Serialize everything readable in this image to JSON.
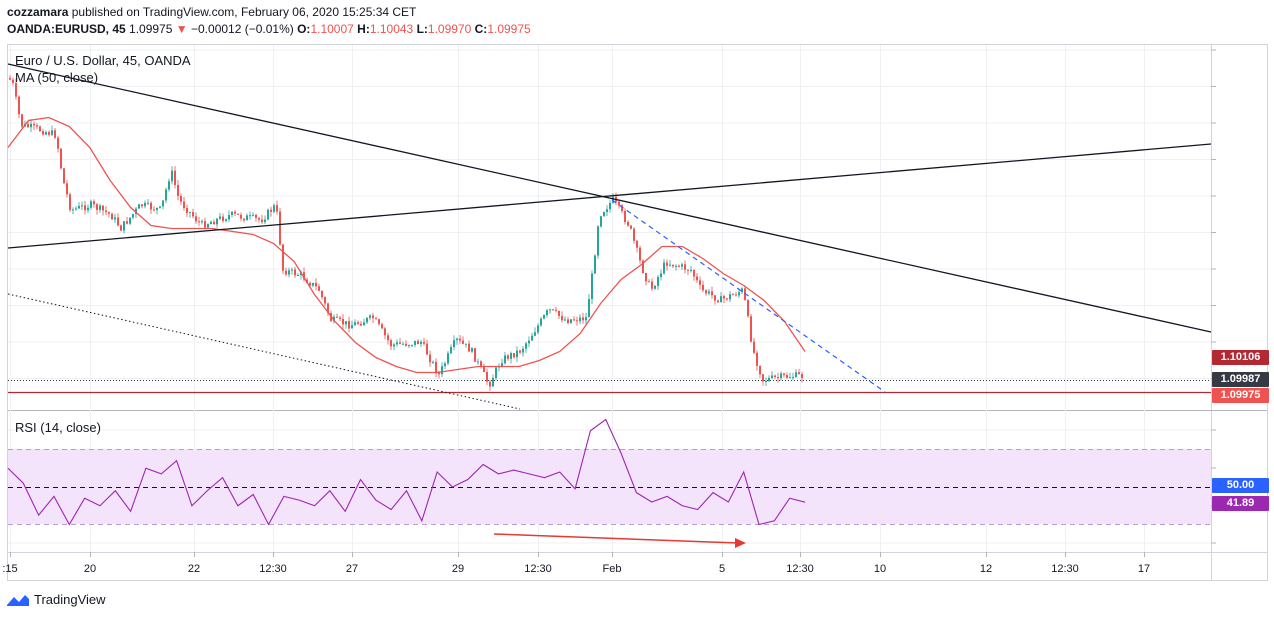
{
  "header": {
    "author": "cozzamara",
    "published_text": "published on TradingView.com, February 06, 2020 15:25:34 CET",
    "symbol": "OANDA:EURUSD, 45",
    "last_price": "1.09975",
    "change_arrow": "▼",
    "change": "−0.00012 (−0.01%)",
    "open_label": "O:",
    "open": "1.10007",
    "high_label": "H:",
    "high": "1.10043",
    "low_label": "L:",
    "low": "1.09970",
    "close_label": "C:",
    "close": "1.09975"
  },
  "price_pane": {
    "title": "Euro / U.S. Dollar, 45, OANDA",
    "ma_label": "MA (50, close)",
    "price_tags": [
      {
        "text": "1.10106",
        "color": "#b22833"
      },
      {
        "text": "1.09987",
        "color": "#363a45"
      },
      {
        "text": "1.09975",
        "color": "#ef5350"
      }
    ]
  },
  "rsi_pane": {
    "label": "RSI (14, close)",
    "tags": [
      {
        "text": "50.00",
        "color": "#2962ff"
      },
      {
        "text": "41.89",
        "color": "#9c27b0"
      }
    ]
  },
  "x_axis": {
    "ticks": [
      ":15",
      "20",
      "22",
      "12:30",
      "27",
      "29",
      "12:30",
      "Feb",
      "5",
      "12:30",
      "10",
      "12",
      "12:30",
      "17"
    ]
  },
  "footer": {
    "brand": "TradingView"
  },
  "colors": {
    "up": "#26a69a",
    "down": "#ef5350",
    "ma": "#ef5350",
    "rsi": "#9c27b0",
    "rsi_band": "#f3e3fb",
    "grid": "#eef0f3"
  },
  "chart_data": [
    {
      "type": "line",
      "title": "Euro / U.S. Dollar, 45, OANDA",
      "series": [
        {
          "name": "MA (50, close)",
          "y": [
            1.1079,
            1.1088,
            1.1089,
            1.1086,
            1.1079,
            1.1068,
            1.1059,
            1.1053,
            1.1052,
            1.1052,
            1.1052,
            1.1051,
            1.105,
            1.1047,
            1.1041,
            1.103,
            1.1021,
            1.1014,
            1.1009,
            1.1006,
            1.1004,
            1.1004,
            1.1005,
            1.1006,
            1.1006,
            1.1006,
            1.1008,
            1.1011,
            1.1017,
            1.1027,
            1.1035,
            1.104,
            1.1046,
            1.1046,
            1.1042,
            1.1037,
            1.1033,
            1.1028,
            1.1021,
            1.1011
          ]
        }
      ]
    },
    {
      "type": "line",
      "title": "RSI (14, close)",
      "series": [
        {
          "name": "RSI (14, close)",
          "y": [
            60,
            52,
            35,
            45,
            30,
            44,
            40,
            48,
            37,
            60,
            57,
            64,
            40,
            48,
            55,
            40,
            46,
            30,
            45,
            43,
            40,
            48,
            37,
            54,
            43,
            38,
            48,
            32,
            58,
            50,
            54,
            62,
            57,
            59,
            57,
            55,
            58,
            49,
            80,
            86,
            68,
            47,
            42,
            45,
            40,
            38,
            47,
            42,
            58,
            30,
            32,
            44,
            41.89
          ]
        }
      ],
      "reference_lines": [
        70,
        50,
        30
      ],
      "last_value": 41.89
    }
  ]
}
